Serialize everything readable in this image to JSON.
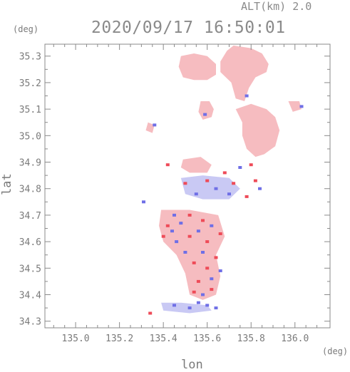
{
  "header": {
    "altitude": "ALT(km) 2.0",
    "timestamp": "2020/09/17 16:50:01"
  },
  "chart_data": {
    "type": "heatmap",
    "title": "2020/09/17 16:50:01",
    "xlabel": "lon",
    "ylabel": "lat",
    "x_unit": "(deg)",
    "y_unit": "(deg)",
    "xlim": [
      134.86,
      136.16
    ],
    "ylim": [
      34.275,
      35.345
    ],
    "x_ticks": [
      135.0,
      135.2,
      135.4,
      135.6,
      135.8,
      136.0
    ],
    "x_tick_labels": [
      "135.0",
      "135.2",
      "135.4",
      "135.6",
      "135.8",
      "136.0"
    ],
    "y_ticks": [
      34.3,
      34.4,
      34.5,
      34.6,
      34.7,
      34.8,
      34.9,
      35.0,
      35.1,
      35.2,
      35.3
    ],
    "y_tick_labels": [
      "34.3",
      "34.4",
      "34.5",
      "34.6",
      "34.7",
      "34.8",
      "34.9",
      "35.0",
      "35.1",
      "35.2",
      "35.3"
    ],
    "grid": false,
    "colors": {
      "pale": "#f6bcc0",
      "red": "#ee4b58",
      "blue": "#6f6fe6",
      "paleblue": "#c9c9f4",
      "axis": "#8a8a8a"
    },
    "regions": [
      {
        "name": "north-main",
        "color": "pale",
        "points": [
          [
            135.72,
            35.34
          ],
          [
            135.8,
            35.33
          ],
          [
            135.85,
            35.31
          ],
          [
            135.88,
            35.27
          ],
          [
            135.87,
            35.24
          ],
          [
            135.82,
            35.22
          ],
          [
            135.79,
            35.18
          ],
          [
            135.77,
            35.13
          ],
          [
            135.73,
            35.14
          ],
          [
            135.71,
            35.2
          ],
          [
            135.66,
            35.24
          ],
          [
            135.66,
            35.28
          ],
          [
            135.69,
            35.32
          ]
        ]
      },
      {
        "name": "north-west",
        "color": "pale",
        "points": [
          [
            135.48,
            35.3
          ],
          [
            135.54,
            35.31
          ],
          [
            135.6,
            35.3
          ],
          [
            135.64,
            35.27
          ],
          [
            135.64,
            35.23
          ],
          [
            135.6,
            35.21
          ],
          [
            135.54,
            35.21
          ],
          [
            135.49,
            35.22
          ],
          [
            135.47,
            35.26
          ]
        ]
      },
      {
        "name": "east-cluster",
        "color": "pale",
        "points": [
          [
            135.73,
            35.1
          ],
          [
            135.8,
            35.12
          ],
          [
            135.87,
            35.1
          ],
          [
            135.91,
            35.07
          ],
          [
            135.93,
            35.02
          ],
          [
            135.91,
            34.96
          ],
          [
            135.86,
            34.93
          ],
          [
            135.82,
            34.92
          ],
          [
            135.78,
            34.95
          ],
          [
            135.76,
            35.0
          ],
          [
            135.76,
            35.05
          ]
        ]
      },
      {
        "name": "mid-cell",
        "color": "pale",
        "points": [
          [
            135.57,
            35.13
          ],
          [
            135.61,
            35.13
          ],
          [
            135.63,
            35.1
          ],
          [
            135.62,
            35.07
          ],
          [
            135.58,
            35.06
          ],
          [
            135.56,
            35.09
          ]
        ]
      },
      {
        "name": "east-small",
        "color": "pale",
        "points": [
          [
            135.97,
            35.13
          ],
          [
            136.02,
            35.13
          ],
          [
            136.03,
            35.1
          ],
          [
            135.99,
            35.09
          ]
        ]
      },
      {
        "name": "small-nw",
        "color": "pale",
        "points": [
          [
            135.33,
            35.05
          ],
          [
            135.36,
            35.04
          ],
          [
            135.35,
            35.01
          ],
          [
            135.32,
            35.02
          ]
        ]
      },
      {
        "name": "central-north",
        "color": "pale",
        "points": [
          [
            135.49,
            34.91
          ],
          [
            135.57,
            34.92
          ],
          [
            135.62,
            34.89
          ],
          [
            135.6,
            34.86
          ],
          [
            135.52,
            34.86
          ],
          [
            135.48,
            34.88
          ]
        ]
      },
      {
        "name": "south-main",
        "color": "pale",
        "points": [
          [
            135.39,
            34.72
          ],
          [
            135.52,
            34.72
          ],
          [
            135.65,
            34.7
          ],
          [
            135.68,
            34.62
          ],
          [
            135.64,
            34.55
          ],
          [
            135.66,
            34.47
          ],
          [
            135.64,
            34.4
          ],
          [
            135.58,
            34.38
          ],
          [
            135.52,
            34.4
          ],
          [
            135.5,
            34.48
          ],
          [
            135.46,
            34.55
          ],
          [
            135.4,
            34.6
          ],
          [
            135.38,
            34.66
          ]
        ]
      },
      {
        "name": "south-tail",
        "color": "paleblue",
        "points": [
          [
            135.39,
            34.37
          ],
          [
            135.48,
            34.37
          ],
          [
            135.6,
            34.36
          ],
          [
            135.62,
            34.34
          ],
          [
            135.52,
            34.33
          ],
          [
            135.4,
            34.34
          ]
        ]
      },
      {
        "name": "mid-band",
        "color": "paleblue",
        "points": [
          [
            135.48,
            34.84
          ],
          [
            135.58,
            34.85
          ],
          [
            135.7,
            34.84
          ],
          [
            135.75,
            34.8
          ],
          [
            135.7,
            34.76
          ],
          [
            135.58,
            34.76
          ],
          [
            135.5,
            34.78
          ]
        ]
      }
    ],
    "scatter_cells": [
      {
        "x": 135.42,
        "y": 34.89,
        "c": "red"
      },
      {
        "x": 135.36,
        "y": 35.04,
        "c": "blue"
      },
      {
        "x": 135.31,
        "y": 34.75,
        "c": "blue"
      },
      {
        "x": 135.8,
        "y": 34.89,
        "c": "red"
      },
      {
        "x": 135.75,
        "y": 34.88,
        "c": "blue"
      },
      {
        "x": 135.84,
        "y": 34.8,
        "c": "blue"
      },
      {
        "x": 135.6,
        "y": 34.83,
        "c": "red"
      },
      {
        "x": 135.64,
        "y": 34.8,
        "c": "blue"
      },
      {
        "x": 135.68,
        "y": 34.86,
        "c": "red"
      },
      {
        "x": 135.72,
        "y": 34.82,
        "c": "red"
      },
      {
        "x": 135.55,
        "y": 34.78,
        "c": "blue"
      },
      {
        "x": 135.5,
        "y": 34.82,
        "c": "red"
      },
      {
        "x": 135.45,
        "y": 34.7,
        "c": "blue"
      },
      {
        "x": 135.42,
        "y": 34.66,
        "c": "red"
      },
      {
        "x": 135.48,
        "y": 34.67,
        "c": "blue"
      },
      {
        "x": 135.52,
        "y": 34.62,
        "c": "red"
      },
      {
        "x": 135.56,
        "y": 34.64,
        "c": "blue"
      },
      {
        "x": 135.6,
        "y": 34.6,
        "c": "red"
      },
      {
        "x": 135.62,
        "y": 34.66,
        "c": "blue"
      },
      {
        "x": 135.66,
        "y": 34.63,
        "c": "red"
      },
      {
        "x": 135.58,
        "y": 34.56,
        "c": "blue"
      },
      {
        "x": 135.54,
        "y": 34.52,
        "c": "red"
      },
      {
        "x": 135.6,
        "y": 34.5,
        "c": "red"
      },
      {
        "x": 135.62,
        "y": 34.46,
        "c": "blue"
      },
      {
        "x": 135.56,
        "y": 34.45,
        "c": "red"
      },
      {
        "x": 135.54,
        "y": 34.41,
        "c": "red"
      },
      {
        "x": 135.58,
        "y": 34.4,
        "c": "blue"
      },
      {
        "x": 135.62,
        "y": 34.42,
        "c": "red"
      },
      {
        "x": 135.5,
        "y": 34.56,
        "c": "blue"
      },
      {
        "x": 135.46,
        "y": 34.6,
        "c": "blue"
      },
      {
        "x": 135.4,
        "y": 34.62,
        "c": "red"
      },
      {
        "x": 135.64,
        "y": 34.54,
        "c": "red"
      },
      {
        "x": 135.66,
        "y": 34.49,
        "c": "blue"
      },
      {
        "x": 135.34,
        "y": 34.33,
        "c": "red"
      },
      {
        "x": 135.45,
        "y": 34.36,
        "c": "blue"
      },
      {
        "x": 135.52,
        "y": 34.35,
        "c": "blue"
      },
      {
        "x": 135.56,
        "y": 34.37,
        "c": "blue"
      },
      {
        "x": 135.6,
        "y": 34.36,
        "c": "blue"
      },
      {
        "x": 135.64,
        "y": 34.35,
        "c": "blue"
      },
      {
        "x": 135.78,
        "y": 35.15,
        "c": "blue"
      },
      {
        "x": 136.03,
        "y": 35.11,
        "c": "blue"
      },
      {
        "x": 135.59,
        "y": 35.08,
        "c": "blue"
      },
      {
        "x": 135.58,
        "y": 34.68,
        "c": "red"
      },
      {
        "x": 135.52,
        "y": 34.7,
        "c": "red"
      },
      {
        "x": 135.44,
        "y": 34.64,
        "c": "blue"
      },
      {
        "x": 135.7,
        "y": 34.78,
        "c": "blue"
      },
      {
        "x": 135.78,
        "y": 34.77,
        "c": "red"
      },
      {
        "x": 135.82,
        "y": 34.83,
        "c": "red"
      }
    ]
  }
}
